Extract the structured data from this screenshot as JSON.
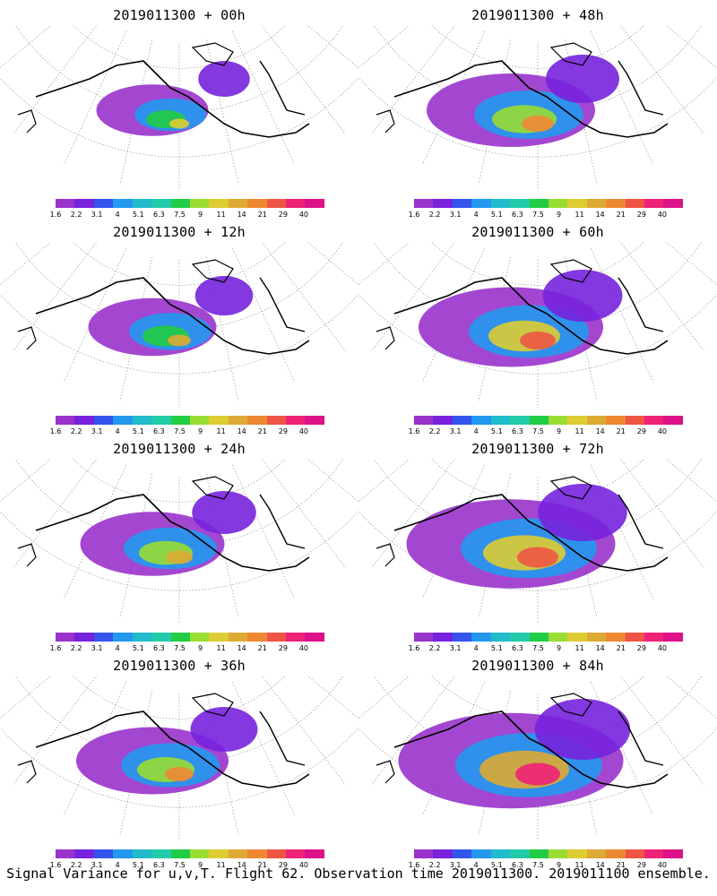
{
  "panels": [
    {
      "title": "2019011300 + 00h",
      "intensity": 0.25
    },
    {
      "title": "2019011300 + 48h",
      "intensity": 0.6
    },
    {
      "title": "2019011300 + 12h",
      "intensity": 0.35
    },
    {
      "title": "2019011300 + 60h",
      "intensity": 0.7
    },
    {
      "title": "2019011300 + 24h",
      "intensity": 0.45
    },
    {
      "title": "2019011300 + 72h",
      "intensity": 0.85
    },
    {
      "title": "2019011300 + 36h",
      "intensity": 0.5
    },
    {
      "title": "2019011300 + 84h",
      "intensity": 0.95
    }
  ],
  "colorbar": {
    "colors": [
      "#9933cc",
      "#7722dd",
      "#3355ee",
      "#2299ee",
      "#22bbcc",
      "#22ccaa",
      "#22cc44",
      "#99dd33",
      "#ddcc33",
      "#ddaa33",
      "#ee8833",
      "#ee5544",
      "#ee2277",
      "#dd1188"
    ],
    "labels": [
      "1.6",
      "2.2",
      "3.1",
      "4",
      "5.1",
      "6.3",
      "7.5",
      "9",
      "11",
      "14",
      "21",
      "29",
      "40"
    ]
  },
  "footer": "Signal Variance for u,v,T. Flight 62. Observation time 2019011300. 2019011100 ensemble."
}
